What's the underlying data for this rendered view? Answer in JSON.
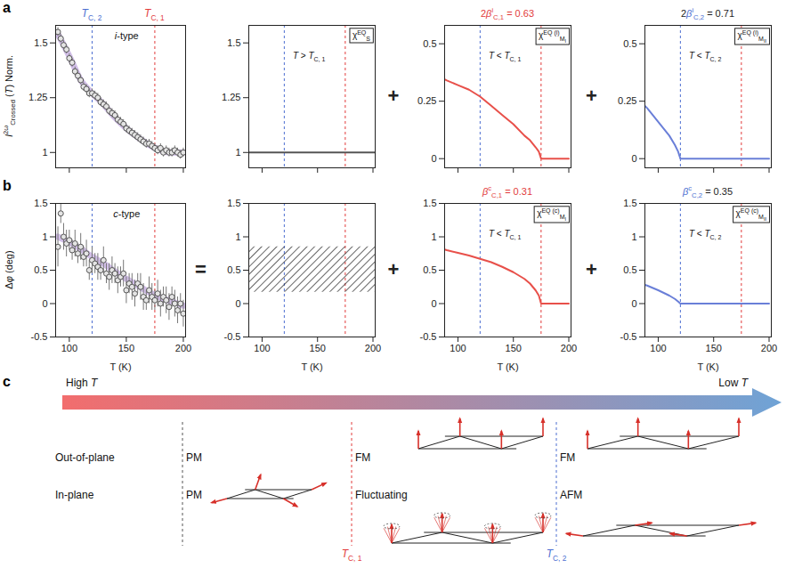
{
  "chart_data": [
    {
      "panel": "a",
      "type": "scatter",
      "ylabel": [
        {
          "italic": "I"
        },
        {
          "sup": "2ω"
        },
        {
          "sub": "Crossed"
        },
        " (",
        {
          "italic": "T"
        },
        ") Norm."
      ],
      "type_label": [
        {
          "italic": "i"
        },
        "-type"
      ],
      "x": [
        90,
        92.5,
        95,
        97.5,
        100,
        102.5,
        105,
        107.5,
        110,
        112.5,
        115,
        117.5,
        120,
        122.5,
        125,
        127.5,
        130,
        132.5,
        135,
        137.5,
        140,
        142.5,
        145,
        147.5,
        150,
        152.5,
        155,
        157.5,
        160,
        162.5,
        165,
        167.5,
        170,
        172.5,
        175,
        177.5,
        180,
        182.5,
        185,
        187.5,
        190,
        192.5,
        195,
        197.5,
        200
      ],
      "values": [
        1.55,
        1.52,
        1.49,
        1.47,
        1.43,
        1.41,
        1.37,
        1.35,
        1.33,
        1.3,
        1.29,
        1.27,
        1.27,
        1.26,
        1.25,
        1.23,
        1.22,
        1.21,
        1.19,
        1.18,
        1.17,
        1.15,
        1.14,
        1.13,
        1.11,
        1.1,
        1.09,
        1.08,
        1.07,
        1.06,
        1.05,
        1.04,
        1.04,
        1.03,
        1.02,
        1.01,
        1.02,
        1.0,
        1.01,
        1.0,
        1.0,
        1.01,
        1.0,
        0.99,
        1.0
      ],
      "errors": [
        0.02,
        0.02,
        0.02,
        0.02,
        0.02,
        0.02,
        0.02,
        0.02,
        0.02,
        0.02,
        0.02,
        0.02,
        0.02,
        0.02,
        0.02,
        0.02,
        0.02,
        0.02,
        0.02,
        0.02,
        0.02,
        0.02,
        0.02,
        0.02,
        0.02,
        0.02,
        0.02,
        0.02,
        0.02,
        0.02,
        0.02,
        0.02,
        0.02,
        0.02,
        0.02,
        0.02,
        0.02,
        0.02,
        0.02,
        0.02,
        0.02,
        0.02,
        0.02,
        0.02,
        0.02
      ],
      "color": "#555555",
      "fit": {
        "x": [
          90,
          100,
          110,
          120,
          130,
          140,
          150,
          160,
          170,
          180,
          190,
          200
        ],
        "values": [
          1.54,
          1.44,
          1.33,
          1.27,
          1.22,
          1.16,
          1.11,
          1.07,
          1.035,
          1.01,
          1.0,
          1.0
        ],
        "color": "#c3a9e0"
      },
      "vlines": [
        {
          "x": 120,
          "color": "#4d6fd1",
          "label": [
            {
              "italic": "T"
            },
            {
              "sub": "C, 2"
            }
          ]
        },
        {
          "x": 175,
          "color": "#e23b3b",
          "label": [
            {
              "italic": "T"
            },
            {
              "sub": "C, 1"
            }
          ]
        }
      ],
      "xlim": [
        88,
        202
      ],
      "xticks": [
        100,
        150,
        200
      ],
      "ylim": [
        0.93,
        1.58
      ],
      "yticks": [
        1,
        1.25,
        1.5
      ],
      "tick_labels": "y"
    },
    {
      "type": "line",
      "box_label": [
        "χ",
        {
          "sup": "EQ"
        },
        {
          "sub": "S"
        }
      ],
      "condition": [
        {
          "italic": "T"
        },
        " > ",
        {
          "italic": "T"
        },
        {
          "sub": "C, 1"
        }
      ],
      "x": [
        88,
        202
      ],
      "values": [
        1,
        1
      ],
      "color": "#555555",
      "vlines": [
        {
          "x": 120,
          "color": "#4d6fd1"
        },
        {
          "x": 175,
          "color": "#e23b3b"
        }
      ],
      "xlim": [
        88,
        202
      ],
      "xticks": [
        100,
        150,
        200
      ],
      "ylim": [
        0.93,
        1.58
      ],
      "yticks": [
        1,
        1.25,
        1.5
      ],
      "tick_labels": "y"
    },
    {
      "type": "line",
      "operator_before": "+",
      "exponent": {
        "text": [
          "2",
          {
            "italic": "β"
          },
          {
            "sup": "i"
          },
          {
            "sub": "C,1"
          },
          " = 0.63"
        ],
        "color": "#e23b3b"
      },
      "box_label": [
        "χ",
        {
          "sup": "EQ (i)"
        },
        {
          "sub": "M"
        },
        {
          "subsub": "I"
        }
      ],
      "condition": [
        {
          "italic": "T"
        },
        " < ",
        {
          "italic": "T"
        },
        {
          "sub": "C, 1"
        }
      ],
      "x": [
        88,
        90,
        100,
        110,
        120,
        130,
        140,
        150,
        160,
        165,
        170,
        173,
        175,
        200
      ],
      "values": [
        0.345,
        0.34,
        0.32,
        0.3,
        0.27,
        0.23,
        0.19,
        0.15,
        0.1,
        0.08,
        0.05,
        0.03,
        0,
        0
      ],
      "color": "#e8504a",
      "vlines": [
        {
          "x": 120,
          "color": "#4d6fd1"
        },
        {
          "x": 175,
          "color": "#e23b3b"
        }
      ],
      "xlim": [
        88,
        202
      ],
      "xticks": [
        100,
        150,
        200
      ],
      "ylim": [
        -0.04,
        0.58
      ],
      "yticks": [
        0,
        0.25,
        0.5
      ],
      "tick_labels": "y"
    },
    {
      "type": "line",
      "operator_before": "+",
      "exponent": {
        "text": [
          "2",
          {
            "italic": "β",
            "color": "#4d6fd1"
          },
          {
            "sup": "i",
            "color": "#4d6fd1"
          },
          {
            "sub": "C,2",
            "color": "#4d6fd1"
          },
          " = 0.71"
        ],
        "color": "#222222"
      },
      "box_label": [
        "χ",
        {
          "sup": "EQ (i)"
        },
        {
          "sub": "M"
        },
        {
          "subsub": "II"
        }
      ],
      "condition": [
        {
          "italic": "T"
        },
        " < ",
        {
          "italic": "T"
        },
        {
          "sub": "C, 2"
        }
      ],
      "x": [
        88,
        90,
        100,
        110,
        115,
        118,
        120,
        200
      ],
      "values": [
        0.23,
        0.22,
        0.16,
        0.1,
        0.06,
        0.03,
        0,
        0
      ],
      "color": "#6a7fd8",
      "vlines": [
        {
          "x": 120,
          "color": "#4d6fd1"
        },
        {
          "x": 175,
          "color": "#e23b3b"
        }
      ],
      "xlim": [
        88,
        202
      ],
      "xticks": [
        100,
        150,
        200
      ],
      "ylim": [
        -0.04,
        0.58
      ],
      "yticks": [
        0,
        0.25,
        0.5
      ],
      "tick_labels": "y"
    },
    {
      "panel": "b",
      "type": "scatter",
      "ylabel": [
        "Δ",
        {
          "italic": "φ"
        },
        " (deg)"
      ],
      "xlabel": "T (K)",
      "type_label": [
        {
          "italic": "c"
        },
        "-type"
      ],
      "x": [
        90,
        92.5,
        95,
        97.5,
        100,
        102.5,
        105,
        107.5,
        110,
        112.5,
        115,
        117.5,
        120,
        122.5,
        125,
        127.5,
        130,
        132.5,
        135,
        137.5,
        140,
        142.5,
        145,
        147.5,
        150,
        152.5,
        155,
        157.5,
        160,
        162.5,
        165,
        167.5,
        170,
        172.5,
        175,
        177.5,
        180,
        182.5,
        185,
        187.5,
        190,
        192.5,
        195,
        197.5,
        200
      ],
      "values": [
        0.85,
        1.35,
        1.0,
        0.9,
        0.95,
        0.8,
        0.9,
        0.75,
        0.85,
        0.7,
        0.75,
        0.5,
        0.65,
        0.6,
        0.55,
        0.5,
        0.65,
        0.45,
        0.4,
        0.5,
        0.45,
        0.35,
        0.4,
        0.45,
        0.2,
        0.3,
        0.25,
        0.15,
        0.3,
        0.25,
        0.1,
        0.05,
        0.2,
        0.1,
        0.05,
        0.15,
        0.0,
        0.1,
        0.05,
        -0.05,
        0.1,
        0.0,
        -0.1,
        0.0,
        -0.15
      ],
      "errors": [
        0.3,
        0.15,
        0.2,
        0.2,
        0.15,
        0.15,
        0.2,
        0.15,
        0.2,
        0.15,
        0.2,
        0.15,
        0.2,
        0.15,
        0.2,
        0.15,
        0.2,
        0.15,
        0.2,
        0.2,
        0.15,
        0.2,
        0.15,
        0.2,
        0.2,
        0.15,
        0.2,
        0.2,
        0.15,
        0.2,
        0.2,
        0.15,
        0.2,
        0.2,
        0.15,
        0.2,
        0.2,
        0.15,
        0.2,
        0.2,
        0.15,
        0.2,
        0.2,
        0.15,
        0.2
      ],
      "color": "#555555",
      "fit": {
        "x": [
          90,
          100,
          110,
          120,
          130,
          140,
          150,
          160,
          170,
          180,
          190,
          200
        ],
        "values": [
          1.0,
          0.92,
          0.82,
          0.7,
          0.6,
          0.48,
          0.37,
          0.27,
          0.17,
          0.09,
          0.03,
          -0.03
        ],
        "color": "#c3a9e0"
      },
      "vlines": [
        {
          "x": 120,
          "color": "#4d6fd1"
        },
        {
          "x": 175,
          "color": "#e23b3b"
        }
      ],
      "xlim": [
        88,
        202
      ],
      "xticks": [
        100,
        150,
        200
      ],
      "ylim": [
        -0.5,
        1.5
      ],
      "yticks": [
        -0.5,
        0,
        0.5,
        1,
        1.5
      ]
    },
    {
      "type": "area",
      "operator_before": "=",
      "xlabel": "T (K)",
      "x": [
        88,
        202
      ],
      "values_low": [
        0.17,
        0.17
      ],
      "values_high": [
        0.85,
        0.85
      ],
      "color": "#222222",
      "vlines": [
        {
          "x": 120,
          "color": "#4d6fd1"
        },
        {
          "x": 175,
          "color": "#e23b3b"
        }
      ],
      "xlim": [
        88,
        202
      ],
      "xticks": [
        100,
        150,
        200
      ],
      "ylim": [
        -0.5,
        1.5
      ],
      "yticks": [
        -0.5,
        0,
        0.5,
        1,
        1.5
      ]
    },
    {
      "type": "line",
      "operator_before": "+",
      "xlabel": "T (K)",
      "exponent": {
        "text": [
          {
            "italic": "β"
          },
          {
            "sup": "c"
          },
          {
            "sub": "C,1"
          },
          " = 0.31"
        ],
        "color": "#e23b3b"
      },
      "box_label": [
        "χ",
        {
          "sup": "EQ (c)"
        },
        {
          "sub": "M"
        },
        {
          "subsub": "I"
        }
      ],
      "condition": [
        {
          "italic": "T"
        },
        " < ",
        {
          "italic": "T"
        },
        {
          "sub": "C, 1"
        }
      ],
      "x": [
        88,
        90,
        100,
        110,
        120,
        130,
        140,
        150,
        160,
        165,
        170,
        173,
        175,
        200
      ],
      "values": [
        0.81,
        0.8,
        0.76,
        0.72,
        0.67,
        0.62,
        0.55,
        0.47,
        0.37,
        0.3,
        0.2,
        0.12,
        0,
        0
      ],
      "color": "#e8504a",
      "vlines": [
        {
          "x": 120,
          "color": "#4d6fd1"
        },
        {
          "x": 175,
          "color": "#e23b3b"
        }
      ],
      "xlim": [
        88,
        202
      ],
      "xticks": [
        100,
        150,
        200
      ],
      "ylim": [
        -0.5,
        1.5
      ],
      "yticks": [
        -0.5,
        0,
        0.5,
        1,
        1.5
      ]
    },
    {
      "type": "line",
      "operator_before": "+",
      "xlabel": "T (K)",
      "exponent": {
        "text": [
          {
            "italic": "β",
            "color": "#4d6fd1"
          },
          {
            "sup": "c",
            "color": "#4d6fd1"
          },
          {
            "sub": "C,2",
            "color": "#4d6fd1"
          },
          " = 0.35"
        ],
        "color": "#222222"
      },
      "box_label": [
        "χ",
        {
          "sup": "EQ (c)"
        },
        {
          "sub": "M"
        },
        {
          "subsub": "II"
        }
      ],
      "condition": [
        {
          "italic": "T"
        },
        " < ",
        {
          "italic": "T"
        },
        {
          "sub": "C, 2"
        }
      ],
      "x": [
        88,
        90,
        100,
        110,
        115,
        118,
        120,
        200
      ],
      "values": [
        0.28,
        0.27,
        0.2,
        0.12,
        0.07,
        0.03,
        0,
        0
      ],
      "color": "#6a7fd8",
      "vlines": [
        {
          "x": 120,
          "color": "#4d6fd1"
        },
        {
          "x": 175,
          "color": "#e23b3b"
        }
      ],
      "xlim": [
        88,
        202
      ],
      "xticks": [
        100,
        150,
        200
      ],
      "ylim": [
        -0.5,
        1.5
      ],
      "yticks": [
        -0.5,
        0,
        0.5,
        1,
        1.5
      ]
    }
  ],
  "diagram": {
    "panel": "c",
    "arrow": {
      "left": [
        "High ",
        {
          "italic": "T"
        }
      ],
      "right": [
        "Low ",
        {
          "italic": "T"
        }
      ],
      "colors": [
        "#f26d6d",
        "#6fa3d6"
      ]
    },
    "boundaries": [
      {
        "color": "#555555"
      },
      {
        "color": "#e23b3b",
        "label": [
          {
            "italic": "T"
          },
          {
            "sub": "C, 1"
          }
        ]
      },
      {
        "color": "#4d6fd1",
        "label": [
          {
            "italic": "T"
          },
          {
            "sub": "C, 2"
          }
        ]
      }
    ],
    "rows": [
      {
        "label": "Out-of-plane",
        "states": [
          "PM",
          "FM",
          "FM"
        ]
      },
      {
        "label": "In-plane",
        "states": [
          "PM",
          "Fluctuating",
          "AFM"
        ]
      }
    ]
  }
}
